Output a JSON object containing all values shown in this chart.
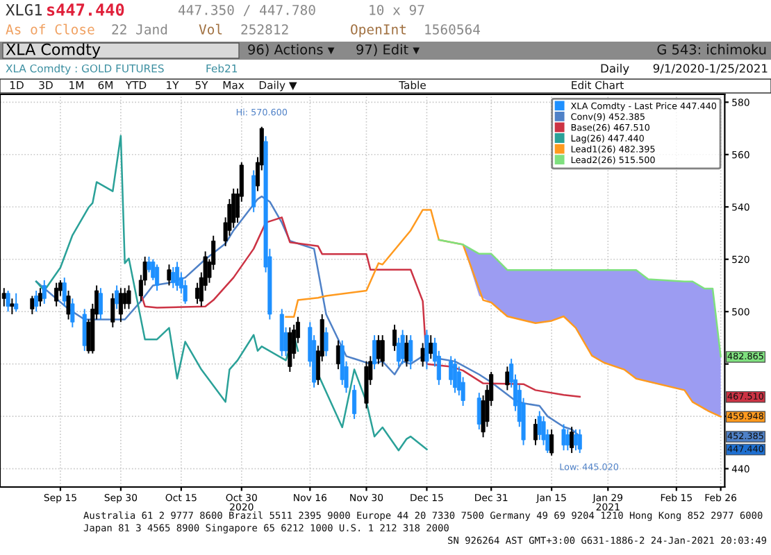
{
  "chart_data": {
    "type": "candlestick",
    "title": "XLA Comdty : GOLD FUTURES",
    "xlim": [
      "2020-08-31",
      "2021-02-27"
    ],
    "xticks": [
      {
        "value": "2020-09-15",
        "label": "Sep 15"
      },
      {
        "value": "2020-09-30",
        "label": "Sep 30"
      },
      {
        "value": "2020-10-15",
        "label": "Oct 15"
      },
      {
        "value": "2020-10-30",
        "label": "Oct 30\n2020"
      },
      {
        "value": "2020-11-16",
        "label": "Nov 16"
      },
      {
        "value": "2020-11-30",
        "label": "Nov 30"
      },
      {
        "value": "2020-12-15",
        "label": "Dec 15"
      },
      {
        "value": "2020-12-31",
        "label": "Dec 31"
      },
      {
        "value": "2021-01-15",
        "label": "Jan 15"
      },
      {
        "value": "2021-01-29",
        "label": "Jan 29\n2021"
      },
      {
        "value": "2021-02-15",
        "label": "Feb 15"
      },
      {
        "value": "2021-02-26",
        "label": "Feb 26"
      }
    ],
    "ylim": [
      433,
      583
    ],
    "yticks": [
      440,
      {
        "value": 460,
        "label": null
      },
      {
        "value": 480,
        "label": null
      },
      500,
      520,
      540,
      560,
      580
    ],
    "grid": true,
    "legend": "top right",
    "series": [
      {
        "name": "XLA Comdty - Last Price 447.440",
        "color": "#1e90ff",
        "x": [
          "2020-09-01",
          "2020-09-02",
          "2020-09-03",
          "2020-09-04",
          "2020-09-08",
          "2020-09-09",
          "2020-09-10",
          "2020-09-11",
          "2020-09-14",
          "2020-09-15",
          "2020-09-16",
          "2020-09-17",
          "2020-09-18",
          "2020-09-21",
          "2020-09-22",
          "2020-09-23",
          "2020-09-24",
          "2020-09-25",
          "2020-09-28",
          "2020-09-29",
          "2020-09-30",
          "2020-10-01",
          "2020-10-02",
          "2020-10-05",
          "2020-10-06",
          "2020-10-07",
          "2020-10-08",
          "2020-10-09",
          "2020-10-12",
          "2020-10-13",
          "2020-10-14",
          "2020-10-15",
          "2020-10-16",
          "2020-10-19",
          "2020-10-20",
          "2020-10-21",
          "2020-10-22",
          "2020-10-23",
          "2020-10-26",
          "2020-10-27",
          "2020-10-28",
          "2020-10-29",
          "2020-10-30",
          "2020-11-02",
          "2020-11-03",
          "2020-11-04",
          "2020-11-05",
          "2020-11-06",
          "2020-11-09",
          "2020-11-10",
          "2020-11-11",
          "2020-11-12",
          "2020-11-13",
          "2020-11-16",
          "2020-11-17",
          "2020-11-18",
          "2020-11-19",
          "2020-11-20",
          "2020-11-23",
          "2020-11-24",
          "2020-11-25",
          "2020-11-27",
          "2020-11-30",
          "2020-12-01",
          "2020-12-02",
          "2020-12-03",
          "2020-12-04",
          "2020-12-07",
          "2020-12-08",
          "2020-12-09",
          "2020-12-10",
          "2020-12-11",
          "2020-12-14",
          "2020-12-15",
          "2020-12-16",
          "2020-12-17",
          "2020-12-18",
          "2020-12-21",
          "2020-12-22",
          "2020-12-23",
          "2020-12-24",
          "2020-12-28",
          "2020-12-29",
          "2020-12-30",
          "2020-12-31",
          "2021-01-04",
          "2021-01-05",
          "2021-01-06",
          "2021-01-07",
          "2021-01-08",
          "2021-01-11",
          "2021-01-12",
          "2021-01-13",
          "2021-01-14",
          "2021-01-15",
          "2021-01-18",
          "2021-01-19",
          "2021-01-20",
          "2021-01-21",
          "2021-01-22"
        ],
        "ohlc": [
          [
            505,
            509,
            502,
            507
          ],
          [
            507,
            508,
            500,
            502
          ],
          [
            502,
            505,
            499,
            503
          ],
          [
            503,
            507,
            500,
            501
          ],
          [
            501,
            506,
            499,
            505
          ],
          [
            506,
            508,
            500,
            502
          ],
          [
            504,
            509,
            502,
            507
          ],
          [
            510,
            512,
            503,
            505
          ],
          [
            504,
            511,
            502,
            509
          ],
          [
            508,
            512,
            506,
            511
          ],
          [
            511,
            513,
            502,
            504
          ],
          [
            499,
            508,
            497,
            506
          ],
          [
            503,
            505,
            494,
            496
          ],
          [
            499,
            501,
            485,
            487
          ],
          [
            485,
            497,
            484,
            496
          ],
          [
            485,
            503,
            484,
            501
          ],
          [
            499,
            510,
            497,
            508
          ],
          [
            507,
            509,
            497,
            499
          ],
          [
            496,
            507,
            494,
            505
          ],
          [
            508,
            510,
            501,
            503
          ],
          [
            499,
            509,
            496,
            507
          ],
          [
            503,
            509,
            501,
            507
          ],
          [
            503,
            510,
            501,
            508
          ],
          [
            506,
            514,
            504,
            512
          ],
          [
            512,
            521,
            510,
            519
          ],
          [
            519,
            521,
            515,
            516
          ],
          [
            519,
            520,
            512,
            513
          ],
          [
            517,
            518,
            508,
            510
          ],
          [
            512,
            518,
            510,
            516
          ],
          [
            515,
            517,
            509,
            511
          ],
          [
            517,
            519,
            508,
            510
          ],
          [
            513,
            515,
            507,
            509
          ],
          [
            510,
            512,
            503,
            504
          ],
          [
            505,
            511,
            503,
            509
          ],
          [
            504,
            515,
            502,
            513
          ],
          [
            510,
            523,
            508,
            521
          ],
          [
            513,
            520,
            511,
            519
          ],
          [
            518,
            529,
            516,
            527
          ],
          [
            527,
            536,
            525,
            534
          ],
          [
            531,
            543,
            529,
            541
          ],
          [
            534,
            547,
            532,
            545
          ],
          [
            536,
            547,
            534,
            545
          ],
          [
            544,
            557,
            542,
            556
          ],
          [
            552,
            554,
            538,
            540
          ],
          [
            548,
            559,
            546,
            557
          ],
          [
            556,
            570.6,
            554,
            570
          ],
          [
            565,
            567,
            515,
            517
          ],
          [
            521,
            524,
            497,
            499
          ],
          [
            499,
            501,
            483,
            485
          ],
          [
            492,
            494,
            483,
            485
          ],
          [
            479,
            494,
            477,
            492
          ],
          [
            484,
            495,
            482,
            493
          ],
          [
            490,
            498,
            488,
            496
          ],
          [
            494,
            496,
            479,
            481
          ],
          [
            489,
            491,
            471,
            473
          ],
          [
            474,
            487,
            472,
            485
          ],
          [
            483,
            499,
            481,
            497
          ],
          [
            492,
            494,
            483,
            485
          ],
          [
            480,
            489,
            478,
            487
          ],
          [
            487,
            489,
            472,
            474
          ],
          [
            479,
            481,
            469,
            471
          ],
          [
            470,
            472,
            459,
            461
          ],
          [
            465,
            481,
            463,
            479
          ],
          [
            474,
            483,
            472,
            481
          ],
          [
            489,
            491,
            478,
            480
          ],
          [
            482,
            491,
            480,
            489
          ],
          [
            481,
            491,
            479,
            489
          ],
          [
            487,
            495,
            485,
            493
          ],
          [
            488,
            490,
            479,
            481
          ],
          [
            491,
            493,
            480,
            482
          ],
          [
            481,
            491,
            479,
            488
          ],
          [
            489,
            491,
            478,
            481
          ],
          [
            481,
            488,
            479,
            486
          ],
          [
            491,
            493,
            478,
            481
          ],
          [
            484,
            491,
            482,
            488
          ],
          [
            488,
            490,
            479,
            481
          ],
          [
            483,
            485,
            472,
            474
          ],
          [
            481,
            483,
            472,
            474
          ],
          [
            480,
            482,
            469,
            471
          ],
          [
            477,
            479,
            468,
            470
          ],
          [
            473,
            475,
            464,
            466
          ],
          [
            467,
            469,
            455,
            457
          ],
          [
            454,
            468,
            452,
            466
          ],
          [
            458,
            472,
            456,
            470
          ],
          [
            466,
            477,
            464,
            476
          ],
          [
            472,
            479,
            470,
            477
          ],
          [
            480,
            482,
            471,
            473
          ],
          [
            474,
            476,
            462,
            464
          ],
          [
            470,
            472,
            456,
            458
          ],
          [
            465,
            467,
            449,
            451
          ],
          [
            451,
            459,
            449,
            457
          ],
          [
            460,
            462,
            451,
            453
          ],
          [
            458,
            460,
            449,
            451
          ],
          [
            453,
            455,
            446,
            447
          ],
          [
            446,
            455,
            445.02,
            453
          ],
          [
            455,
            457,
            447,
            449
          ],
          [
            453,
            455,
            447,
            449
          ],
          [
            448,
            456,
            446,
            454
          ],
          [
            453,
            455,
            447,
            449
          ],
          [
            453,
            455,
            446,
            447.44
          ]
        ],
        "colors": [
          "#000000",
          "#1e90ff",
          "#000000",
          "#1e90ff",
          "#000000",
          "#1e90ff",
          "#000000",
          "#1e90ff",
          "#000000",
          "#000000",
          "#1e90ff",
          "#000000",
          "#1e90ff",
          "#1e90ff",
          "#000000",
          "#000000",
          "#000000",
          "#1e90ff",
          "#000000",
          "#1e90ff",
          "#000000",
          "#000000",
          "#000000",
          "#000000",
          "#000000",
          "#1e90ff",
          "#1e90ff",
          "#1e90ff",
          "#000000",
          "#1e90ff",
          "#1e90ff",
          "#1e90ff",
          "#1e90ff",
          "#000000",
          "#000000",
          "#000000",
          "#000000",
          "#000000",
          "#000000",
          "#000000",
          "#000000",
          "#000000",
          "#000000",
          "#1e90ff",
          "#000000",
          "#000000",
          "#1e90ff",
          "#1e90ff",
          "#1e90ff",
          "#1e90ff",
          "#000000",
          "#000000",
          "#000000",
          "#1e90ff",
          "#1e90ff",
          "#000000",
          "#000000",
          "#1e90ff",
          "#000000",
          "#1e90ff",
          "#1e90ff",
          "#1e90ff",
          "#000000",
          "#000000",
          "#1e90ff",
          "#000000",
          "#000000",
          "#000000",
          "#1e90ff",
          "#1e90ff",
          "#000000",
          "#1e90ff",
          "#000000",
          "#1e90ff",
          "#000000",
          "#1e90ff",
          "#1e90ff",
          "#1e90ff",
          "#1e90ff",
          "#1e90ff",
          "#1e90ff",
          "#1e90ff",
          "#000000",
          "#000000",
          "#000000",
          "#000000",
          "#1e90ff",
          "#1e90ff",
          "#1e90ff",
          "#1e90ff",
          "#000000",
          "#1e90ff",
          "#1e90ff",
          "#1e90ff",
          "#000000",
          "#1e90ff",
          "#1e90ff",
          "#000000",
          "#1e90ff",
          "#1e90ff"
        ]
      },
      {
        "name": "Conv(9) 452.385",
        "type": "line",
        "color": "#4f81c7",
        "x": [
          "2020-09-09",
          "2020-09-17",
          "2020-09-21",
          "2020-10-01",
          "2020-10-05",
          "2020-10-08",
          "2020-10-12",
          "2020-10-16",
          "2020-10-21",
          "2020-10-26",
          "2020-10-28",
          "2020-11-03",
          "2020-11-04",
          "2020-11-06",
          "2020-11-09",
          "2020-11-11",
          "2020-11-17",
          "2020-11-20",
          "2020-11-25",
          "2020-12-01",
          "2020-12-04",
          "2020-12-07",
          "2020-12-09",
          "2020-12-11",
          "2020-12-16",
          "2020-12-18",
          "2020-12-22",
          "2020-12-28",
          "2020-12-31",
          "2021-01-06",
          "2021-01-08",
          "2021-01-12",
          "2021-01-14",
          "2021-01-18",
          "2021-01-20",
          "2021-01-22"
        ],
        "values": [
          511.5,
          501,
          497,
          497,
          504,
          510,
          511,
          513,
          520,
          526,
          531,
          543,
          544,
          542,
          534,
          527,
          524,
          499,
          483,
          480,
          481,
          476,
          481,
          480,
          485,
          482,
          481,
          476,
          473,
          466,
          465,
          464,
          460,
          456,
          455,
          452.4
        ]
      },
      {
        "name": "Base(26) 467.510",
        "type": "line",
        "color": "#cc3344",
        "x": [
          "2020-10-05",
          "2020-10-06",
          "2020-10-09",
          "2020-10-21",
          "2020-10-23",
          "2020-10-28",
          "2020-11-02",
          "2020-11-05",
          "2020-11-09",
          "2020-11-11",
          "2020-11-18",
          "2020-11-19",
          "2020-11-30",
          "2020-12-01",
          "2020-12-11",
          "2020-12-14",
          "2020-12-15",
          "2020-12-21",
          "2020-12-24",
          "2020-12-29",
          "2021-01-08",
          "2021-01-11",
          "2021-01-18",
          "2021-01-22"
        ],
        "values": [
          507,
          502,
          501.5,
          502,
          504.4,
          513,
          524,
          534,
          536,
          526.5,
          525,
          522,
          522,
          516,
          516,
          504,
          480,
          479,
          477.5,
          472.6,
          472.3,
          470,
          468.2,
          467.5
        ]
      },
      {
        "name": "Lag(26) 447.440",
        "type": "line",
        "color": "#2aa198",
        "x": [
          "2020-09-09",
          "2020-09-11",
          "2020-09-15",
          "2020-09-18",
          "2020-09-22",
          "2020-09-23",
          "2020-09-24",
          "2020-09-28",
          "2020-09-30",
          "2020-10-01",
          "2020-10-02",
          "2020-10-06",
          "2020-10-09",
          "2020-10-12",
          "2020-10-14",
          "2020-10-15",
          "2020-10-16",
          "2020-10-20",
          "2020-10-26",
          "2020-10-27",
          "2020-10-29",
          "2020-11-02",
          "2020-11-03",
          "2020-11-04",
          "2020-11-10",
          "2020-11-12",
          "2020-11-13",
          "2020-11-17",
          "2020-11-18",
          "2020-11-24",
          "2020-11-27",
          "2020-11-30",
          "2020-12-02",
          "2020-12-04",
          "2020-12-08",
          "2020-12-10",
          "2020-12-11",
          "2020-12-15"
        ],
        "values": [
          511.5,
          508,
          516.8,
          529.2,
          539.8,
          541.5,
          549.5,
          546,
          567.2,
          518.5,
          520.3,
          489.4,
          489.4,
          493.8,
          474.4,
          481.4,
          488.5,
          477.9,
          465.5,
          477.9,
          481.4,
          491.1,
          485,
          486.7,
          481.4,
          491.1,
          485,
          null,
          476.1,
          455.8,
          477.9,
          465.5,
          452.3,
          455.8,
          447,
          451.4,
          452.3,
          447.4
        ]
      },
      {
        "name": "Lead1(26) 482.395",
        "type": "line",
        "color": "#ff9a1f",
        "x": [
          "2020-11-10",
          "2020-11-12",
          "2020-11-13",
          "2020-11-18",
          "2020-11-20",
          "2020-11-30",
          "2020-12-03",
          "2020-12-04",
          "2020-12-11",
          "2020-12-14",
          "2020-12-16",
          "2020-12-18",
          "2020-12-24",
          "2020-12-29",
          "2020-12-31",
          "2021-01-04",
          "2021-01-11",
          "2021-01-15",
          "2021-01-18",
          "2021-01-21",
          "2021-01-25",
          "2021-01-28",
          "2021-02-02",
          "2021-02-05",
          "2021-02-17",
          "2021-02-19",
          "2021-02-23",
          "2021-02-26"
        ],
        "values": [
          498,
          498,
          504.4,
          505.3,
          506,
          508,
          518.5,
          518,
          531,
          538.9,
          538.9,
          527.4,
          525.6,
          504.4,
          503.5,
          498.2,
          495.6,
          496.5,
          498.2,
          493.8,
          483.2,
          480.5,
          477.9,
          474.4,
          470,
          465.5,
          462,
          459.9
        ]
      },
      {
        "name": "Lead2(26) 515.500",
        "type": "line",
        "color": "#7fe07f",
        "x": [
          "2020-12-18",
          "2020-12-24",
          "2020-12-28",
          "2020-12-31",
          "2021-01-04",
          "2021-01-11",
          "2021-01-15",
          "2021-01-18",
          "2021-01-21",
          "2021-01-25",
          "2021-01-28",
          "2021-02-02",
          "2021-02-05",
          "2021-02-08",
          "2021-02-17",
          "2021-02-19",
          "2021-02-22",
          "2021-02-24",
          "2021-02-26"
        ],
        "values": [
          527.4,
          525.6,
          522.1,
          522.1,
          515.9,
          515.9,
          515.9,
          515.9,
          515.9,
          515.9,
          515.9,
          515.9,
          515.9,
          512.4,
          511.5,
          511.5,
          508.8,
          508.8,
          482.9
        ],
        "upper": [
          527.4,
          525.6,
          522.1,
          522.1,
          515.9,
          515.9,
          515.9,
          515.9,
          515.9,
          515.9,
          515.9,
          515.9,
          515.9,
          512.4,
          511.5,
          511.5,
          508.8,
          508.8,
          482.9
        ],
        "lower": [
          527.4,
          525.6,
          506,
          503.5,
          498.2,
          495.6,
          496.5,
          498.2,
          493.8,
          483.2,
          480.5,
          477.9,
          474.4,
          473,
          470,
          465.5,
          462.5,
          461,
          459.9
        ]
      }
    ],
    "annotations": [
      "XLG1",
      "s447.440",
      "447.350 / 447.780",
      "10 x 97",
      "As of Close",
      "22 Jand",
      "Vol",
      "252812",
      "OpenInt",
      "1560564",
      "XLA Comdty",
      "96) Actions ▾",
      "97) Edit ▾",
      "G 543: ichimoku",
      "Feb21",
      "Daily",
      "9/1/2020-1/25/2021",
      "1D",
      "3D",
      "1M",
      "6M",
      "YTD",
      "1Y",
      "5Y",
      "Max",
      "Daily ▼",
      "Table",
      "Edit Chart",
      "Australia 61 2 9777 8600 Brazil 5511 2395 9000 Europe 44 20 7330 7500 Germany 49 69 9204 1210 Hong Kong 852 2977 6000",
      "Japan 81 3 4565 8900 Singapore 65 6212 1000 U.S. 1 212 318 2000",
      "SN 926264 AST GMT+3:00 G631-1886-2 24-Jan-2021 20:03:49",
      {
        "text": "Hi: 570.600",
        "x": "2020-11-04",
        "y": 570.6
      },
      {
        "text": "Low: 445.020",
        "x": "2021-01-15",
        "y": 445.02
      },
      "482.865",
      "467.510",
      "459.948",
      "452.385",
      "447.440"
    ]
  }
}
